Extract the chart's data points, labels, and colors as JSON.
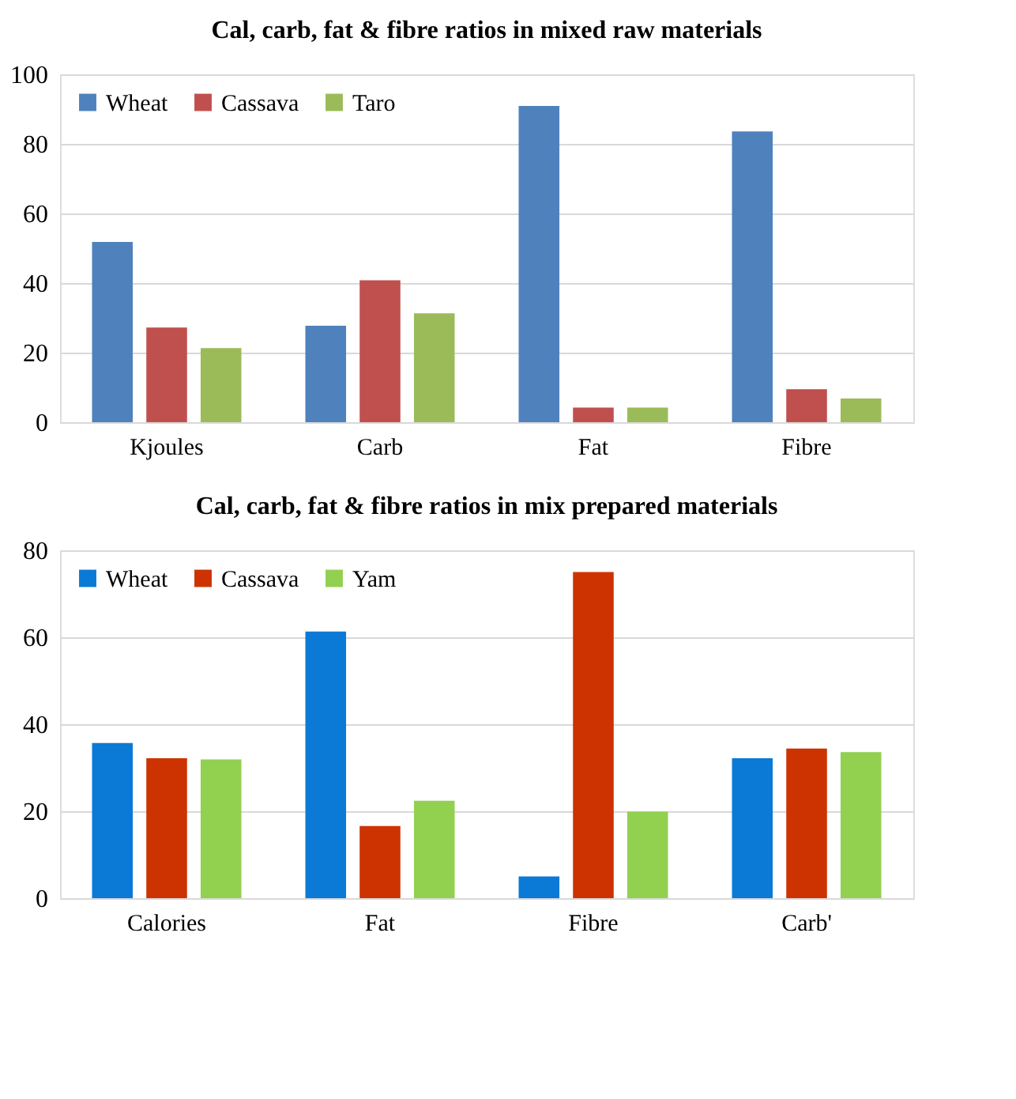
{
  "chart_data": [
    {
      "type": "bar",
      "title": "Cal, carb, fat & fibre ratios in mixed raw materials",
      "categories": [
        "Kjoules",
        "Carb",
        "Fat",
        "Fibre"
      ],
      "series": [
        {
          "name": "Wheat",
          "color": "#4f81bd",
          "values": [
            51.8,
            27.7,
            90.9,
            83.6
          ]
        },
        {
          "name": "Cassava",
          "color": "#c0504d",
          "values": [
            27.2,
            40.8,
            4.2,
            9.5
          ]
        },
        {
          "name": "Taro",
          "color": "#9bbb59",
          "values": [
            21.3,
            31.3,
            4.2,
            6.8
          ]
        }
      ],
      "ylim": [
        0,
        100
      ],
      "yticks": [
        0,
        20,
        40,
        60,
        80,
        100
      ],
      "grid": "y",
      "legend": "top left"
    },
    {
      "type": "bar",
      "title": "Cal, carb, fat & fibre ratios in mix prepared materials",
      "categories": [
        "Calories",
        "Fat",
        "Fibre",
        "Carb'"
      ],
      "series": [
        {
          "name": "Wheat",
          "color": "#0a7ad6",
          "values": [
            35.7,
            61.3,
            5.0,
            32.2
          ]
        },
        {
          "name": "Cassava",
          "color": "#cc3300",
          "values": [
            32.2,
            16.6,
            75.0,
            34.4
          ]
        },
        {
          "name": "Yam",
          "color": "#92d050",
          "values": [
            31.9,
            22.4,
            19.9,
            33.6
          ]
        }
      ],
      "ylim": [
        0,
        80
      ],
      "yticks": [
        0,
        20,
        40,
        60,
        80
      ],
      "grid": "y",
      "legend": "top left"
    }
  ]
}
